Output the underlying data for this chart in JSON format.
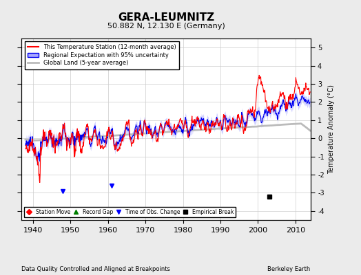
{
  "title": "GERA-LEUMNITZ",
  "subtitle": "50.882 N, 12.130 E (Germany)",
  "xlabel_bottom": "Data Quality Controlled and Aligned at Breakpoints",
  "xlabel_right": "Berkeley Earth",
  "ylabel": "Temperature Anomaly (°C)",
  "xlim": [
    1937,
    2014
  ],
  "ylim": [
    -4.5,
    5.5
  ],
  "yticks": [
    -4,
    -3,
    -2,
    -1,
    0,
    1,
    2,
    3,
    4,
    5
  ],
  "xticks": [
    1940,
    1950,
    1960,
    1970,
    1980,
    1990,
    2000,
    2010
  ],
  "background_color": "#ebebeb",
  "plot_bg_color": "#ffffff",
  "grid_color": "#cccccc",
  "station_line_color": "#ff0000",
  "regional_fill_color": "#aaaaff",
  "regional_line_color": "#0000ee",
  "global_line_color": "#bbbbbb",
  "empirical_break_year": 2003,
  "empirical_break_value": -3.2,
  "time_obs_change_years": [
    1948,
    1961
  ],
  "time_obs_change_values": [
    -2.9,
    -2.6
  ],
  "seed": 17,
  "start_year": 1938,
  "end_year": 2013
}
